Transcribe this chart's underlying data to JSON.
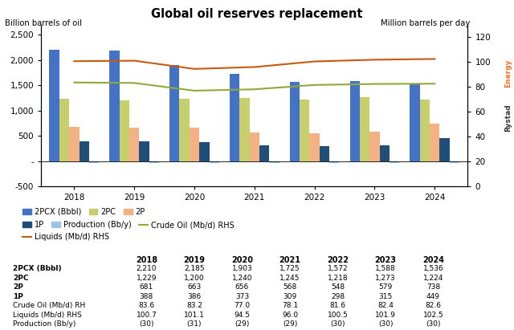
{
  "title": "Global oil reserves replacement",
  "ylabel_left": "Billion barrels of oil",
  "ylabel_right": "Million barrels per day",
  "years": [
    2018,
    2019,
    2020,
    2021,
    2022,
    2023,
    2024
  ],
  "2PCX": [
    2210,
    2185,
    1903,
    1725,
    1572,
    1588,
    1536
  ],
  "2PC": [
    1229,
    1200,
    1240,
    1245,
    1218,
    1273,
    1224
  ],
  "2P": [
    681,
    663,
    656,
    568,
    548,
    579,
    738
  ],
  "1P": [
    388,
    386,
    373,
    309,
    298,
    315,
    449
  ],
  "Production": [
    -30,
    -31,
    -29,
    -29,
    -30,
    -30,
    -30
  ],
  "CrudeOil_RHS": [
    83.6,
    83.2,
    77.0,
    78.1,
    81.6,
    82.4,
    82.6
  ],
  "Liquids_RHS": [
    100.7,
    101.1,
    94.5,
    96.0,
    100.5,
    101.9,
    102.5
  ],
  "color_2PCX": "#4472C4",
  "color_2PC": "#C6CF6B",
  "color_2P": "#F4B183",
  "color_1P": "#1F4E79",
  "color_Production": "#9DC3E6",
  "color_CrudeOil": "#92A83A",
  "color_Liquids": "#C55A11",
  "ylim_left": [
    -500,
    2700
  ],
  "ylim_right": [
    0,
    130
  ],
  "yticks_left": [
    -500,
    0,
    500,
    1000,
    1500,
    2000,
    2500
  ],
  "yticks_right": [
    0,
    20,
    40,
    60,
    80,
    100,
    120
  ],
  "background": "#FFFFFF",
  "table_rows": [
    "2PCX (Bbbl)",
    "2PC",
    "2P",
    "1P",
    "Crude Oil (Mb/d) RH",
    "Liquids (Mb/d) RHS",
    "Production (Bb/y)"
  ],
  "table_bold": [
    true,
    true,
    true,
    true,
    false,
    false,
    false
  ],
  "table_data": [
    [
      2210,
      2185,
      1903,
      1725,
      1572,
      1588,
      1536
    ],
    [
      1229,
      1200,
      1240,
      1245,
      1218,
      1273,
      1224
    ],
    [
      681,
      663,
      656,
      568,
      548,
      579,
      738
    ],
    [
      388,
      386,
      373,
      309,
      298,
      315,
      449
    ],
    [
      83.6,
      83.2,
      77.0,
      78.1,
      81.6,
      82.4,
      82.6
    ],
    [
      100.7,
      101.1,
      94.5,
      96.0,
      100.5,
      101.9,
      102.5
    ],
    [
      -30,
      -31,
      -29,
      -29,
      -30,
      -30,
      -30
    ]
  ],
  "rystad_color_Rystad": "#333333",
  "rystad_color_Energy": "#F37021"
}
